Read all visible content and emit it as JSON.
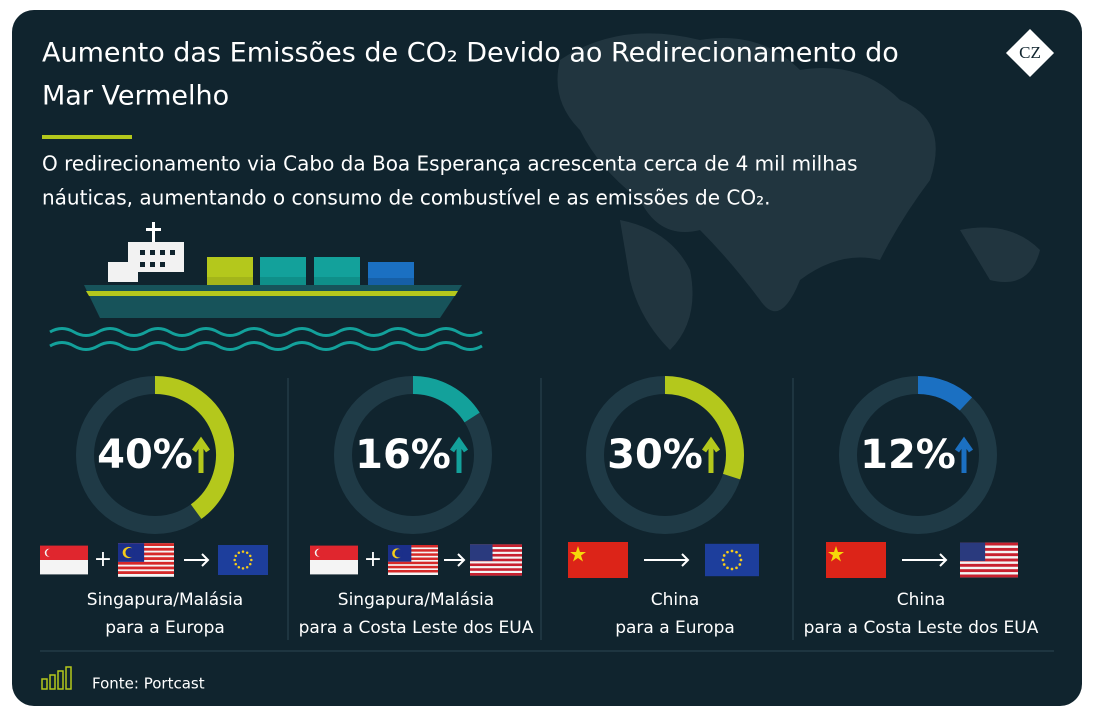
{
  "chart_data": {
    "type": "donut",
    "title": [
      "Aumento das Emissões de CO₂ Devido ao Redirecionamento do",
      "Mar Vermelho"
    ],
    "subtitle": [
      "O redirecionamento via Cabo da Boa Esperança acrescenta cerca de 4 mil milhas",
      "náuticas, aumentando o consumo de combustível e as emissões de CO₂."
    ],
    "logo": "CZ",
    "ylim": [
      0,
      100
    ],
    "categories": [
      [
        "Singapura/Malásia",
        "para a Europa"
      ],
      [
        "Singapura/Malásia",
        "para a Costa Leste dos EUA"
      ],
      [
        "China",
        "para a Europa"
      ],
      [
        "China",
        "para a Costa Leste dos EUA"
      ]
    ],
    "values": [
      40,
      16,
      30,
      12
    ],
    "value_labels": [
      "40%",
      "16%",
      "30%",
      "12%"
    ],
    "colors": [
      "#b4c81c",
      "#13a19b",
      "#b4c81c",
      "#1b70c2"
    ],
    "source": "Fonte: Portcast"
  }
}
